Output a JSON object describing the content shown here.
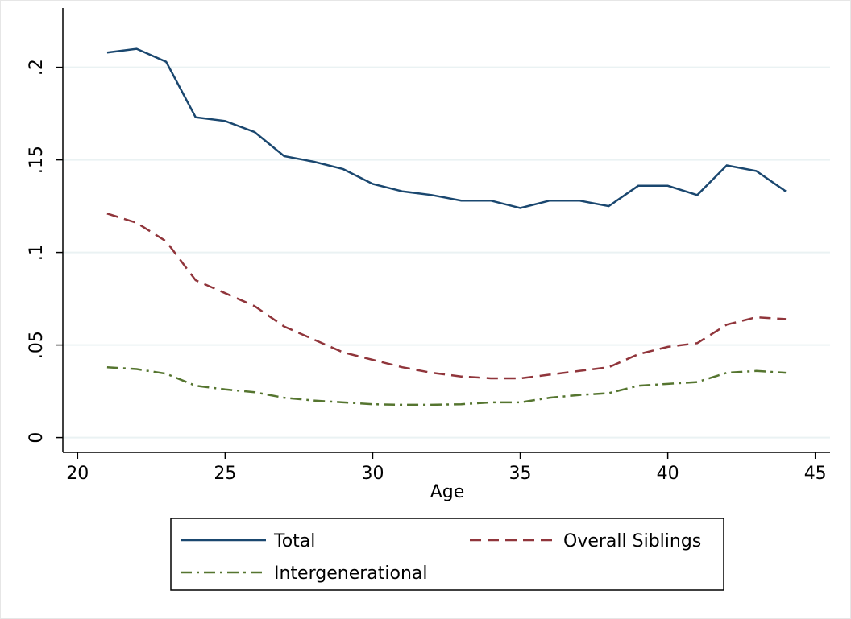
{
  "chart_data": {
    "type": "line",
    "x_label": "Age",
    "x": [
      21,
      22,
      23,
      24,
      25,
      26,
      27,
      28,
      29,
      30,
      31,
      32,
      33,
      34,
      35,
      36,
      37,
      38,
      39,
      40,
      41,
      42,
      43,
      44
    ],
    "series": [
      {
        "name": "Total",
        "color": "#1a476f",
        "dash": "solid",
        "values": [
          0.208,
          0.21,
          0.203,
          0.173,
          0.171,
          0.165,
          0.152,
          0.149,
          0.145,
          0.137,
          0.133,
          0.131,
          0.128,
          0.128,
          0.124,
          0.128,
          0.128,
          0.125,
          0.136,
          0.136,
          0.131,
          0.147,
          0.144,
          0.133
        ]
      },
      {
        "name": "Overall Siblings",
        "color": "#90353b",
        "dash": "dash",
        "values": [
          0.121,
          0.116,
          0.106,
          0.085,
          0.078,
          0.071,
          0.06,
          0.053,
          0.046,
          0.042,
          0.038,
          0.035,
          0.033,
          0.032,
          0.032,
          0.034,
          0.036,
          0.038,
          0.045,
          0.049,
          0.051,
          0.061,
          0.065,
          0.064
        ]
      },
      {
        "name": "Intergenerational",
        "color": "#55752f",
        "dash": "dashdot",
        "values": [
          0.038,
          0.037,
          0.0345,
          0.028,
          0.026,
          0.0245,
          0.0215,
          0.02,
          0.019,
          0.018,
          0.0177,
          0.0177,
          0.018,
          0.019,
          0.019,
          0.0215,
          0.023,
          0.024,
          0.028,
          0.029,
          0.03,
          0.035,
          0.036,
          0.035
        ]
      }
    ],
    "xlim": [
      19.5,
      45.5
    ],
    "xticks": [
      20,
      25,
      30,
      35,
      40,
      45
    ],
    "ylim": [
      -0.008,
      0.232
    ],
    "yticks": [
      0,
      {
        "value": 0.05,
        "label": ".05"
      },
      {
        "value": 0.1,
        "label": ".1"
      },
      {
        "value": 0.15,
        "label": ".15"
      },
      {
        "value": 0.2,
        "label": ".2"
      }
    ],
    "grid": true,
    "legend_position": "bottom"
  }
}
